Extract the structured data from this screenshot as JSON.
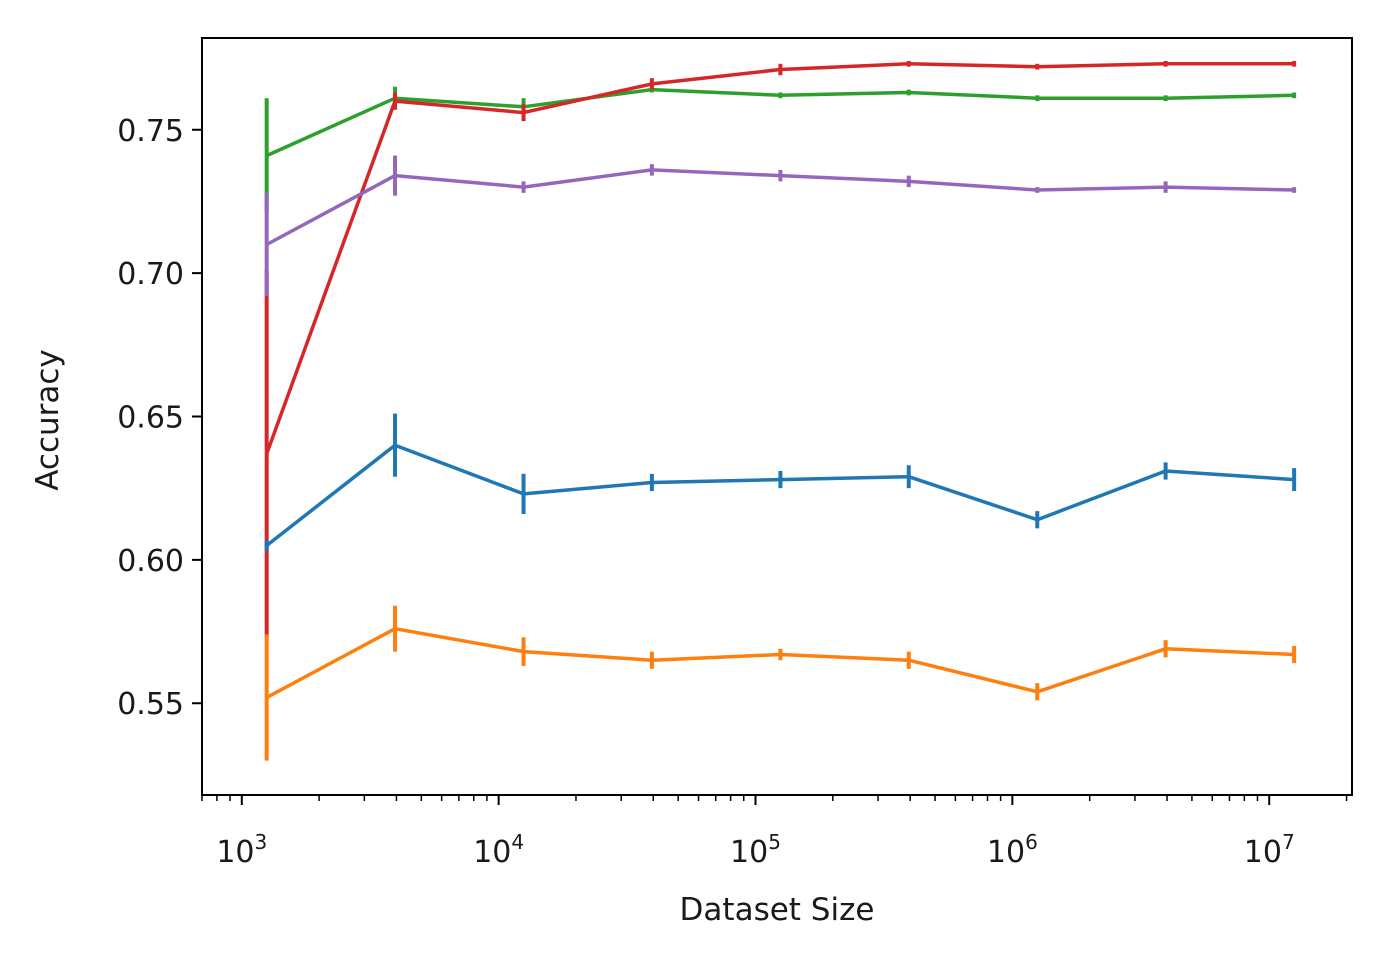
{
  "chart_data": {
    "type": "line",
    "title": "",
    "xlabel": "Dataset Size",
    "ylabel": "Accuracy",
    "xscale": "log",
    "xlim": [
      700,
      21000000
    ],
    "ylim": [
      0.518,
      0.782
    ],
    "grid": false,
    "x": [
      1250,
      3950,
      12500,
      39500,
      125000,
      395000,
      1250000,
      3950000,
      12500000
    ],
    "x_ticks": [
      {
        "value": 1000,
        "base": "10",
        "exp": "3"
      },
      {
        "value": 10000,
        "base": "10",
        "exp": "4"
      },
      {
        "value": 100000,
        "base": "10",
        "exp": "5"
      },
      {
        "value": 1000000,
        "base": "10",
        "exp": "6"
      },
      {
        "value": 10000000,
        "base": "10",
        "exp": "7"
      }
    ],
    "y_ticks": [
      {
        "value": 0.55,
        "label": "0.55"
      },
      {
        "value": 0.6,
        "label": "0.60"
      },
      {
        "value": 0.65,
        "label": "0.65"
      },
      {
        "value": 0.7,
        "label": "0.70"
      },
      {
        "value": 0.75,
        "label": "0.75"
      }
    ],
    "series": [
      {
        "name": "blue",
        "color": "#1f77b4",
        "values": [
          0.605,
          0.64,
          0.623,
          0.627,
          0.628,
          0.629,
          0.614,
          0.631,
          0.628
        ],
        "errors": [
          0.002,
          0.011,
          0.007,
          0.003,
          0.003,
          0.004,
          0.003,
          0.003,
          0.004
        ]
      },
      {
        "name": "orange",
        "color": "#ff7f0e",
        "values": [
          0.552,
          0.576,
          0.568,
          0.565,
          0.567,
          0.565,
          0.554,
          0.569,
          0.567
        ],
        "errors": [
          0.022,
          0.008,
          0.005,
          0.003,
          0.002,
          0.003,
          0.003,
          0.003,
          0.003
        ]
      },
      {
        "name": "green",
        "color": "#2ca02c",
        "values": [
          0.741,
          0.761,
          0.758,
          0.764,
          0.762,
          0.763,
          0.761,
          0.761,
          0.762
        ],
        "errors": [
          0.02,
          0.004,
          0.003,
          0.001,
          0.001,
          0.001,
          0.001,
          0.001,
          0.001
        ]
      },
      {
        "name": "red",
        "color": "#d62728",
        "values": [
          0.637,
          0.76,
          0.756,
          0.766,
          0.771,
          0.773,
          0.772,
          0.773,
          0.773
        ],
        "errors": [
          0.064,
          0.003,
          0.003,
          0.002,
          0.002,
          0.001,
          0.001,
          0.001,
          0.001
        ]
      },
      {
        "name": "purple",
        "color": "#9467bd",
        "values": [
          0.71,
          0.734,
          0.73,
          0.736,
          0.734,
          0.732,
          0.729,
          0.73,
          0.729
        ],
        "errors": [
          0.018,
          0.007,
          0.002,
          0.002,
          0.002,
          0.002,
          0.001,
          0.002,
          0.001
        ]
      }
    ],
    "draw_order": [
      "green",
      "red",
      "purple",
      "blue",
      "orange"
    ]
  }
}
